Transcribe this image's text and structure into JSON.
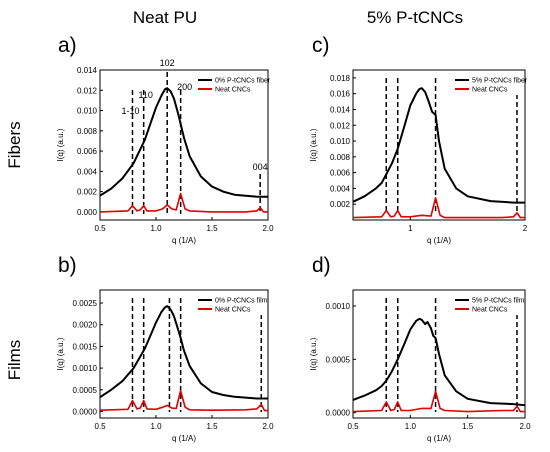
{
  "headers": {
    "left": "Neat PU",
    "right": "5% P-tCNCs"
  },
  "row_labels": {
    "top": "Fibers",
    "bottom": "Films"
  },
  "colors": {
    "series_main": "#000000",
    "series_cncs": "#e00000",
    "dashed": "#000000"
  },
  "chart_data": [
    {
      "id": "a",
      "type": "line",
      "panel_label": "a)",
      "xlabel": "q (1/A)",
      "ylabel": "I(q) (a.u.)",
      "xlim": [
        0.5,
        2.0
      ],
      "ylim": [
        -0.0008,
        0.014
      ],
      "xticks": [
        0.5,
        1.0,
        1.5,
        2.0
      ],
      "xtick_labels": [
        "0.5",
        "1.0",
        "1.5",
        "2.0"
      ],
      "yticks": [
        0.0,
        0.002,
        0.004,
        0.006,
        0.008,
        0.01,
        0.012,
        0.014
      ],
      "ytick_labels": [
        "0.000",
        "0.002",
        "0.004",
        "0.006",
        "0.008",
        "0.010",
        "0.012",
        "0.014"
      ],
      "legend_position": "top-right",
      "dashed_lines": [
        0.79,
        0.89,
        1.1,
        1.22,
        1.93
      ],
      "annotations": [
        {
          "text": "1-10",
          "x": 0.79
        },
        {
          "text": "110",
          "x": 0.89
        },
        {
          "text": "102",
          "x": 1.1
        },
        {
          "text": "200",
          "x": 1.22
        },
        {
          "text": "004",
          "x": 1.93
        }
      ],
      "series": [
        {
          "name": "0% P-tCNCs fiber",
          "color": "#000000",
          "x": [
            0.5,
            0.6,
            0.7,
            0.8,
            0.9,
            0.95,
            1.0,
            1.05,
            1.08,
            1.1,
            1.13,
            1.16,
            1.2,
            1.25,
            1.3,
            1.4,
            1.5,
            1.6,
            1.7,
            1.8,
            1.9,
            2.0
          ],
          "y": [
            0.0016,
            0.0023,
            0.0033,
            0.0048,
            0.0071,
            0.0087,
            0.0103,
            0.0115,
            0.0121,
            0.0122,
            0.0119,
            0.0112,
            0.0096,
            0.0073,
            0.0055,
            0.0035,
            0.0025,
            0.002,
            0.0017,
            0.0016,
            0.0015,
            0.0015
          ]
        },
        {
          "name": "Neat CNCs",
          "color": "#e00000",
          "x": [
            0.5,
            0.75,
            0.79,
            0.83,
            0.86,
            0.89,
            0.92,
            1.0,
            1.06,
            1.1,
            1.14,
            1.18,
            1.22,
            1.26,
            1.3,
            1.5,
            1.8,
            1.9,
            1.93,
            1.96,
            2.0
          ],
          "y": [
            0.0,
            0.0001,
            0.0006,
            0.0001,
            0.0002,
            0.0006,
            0.0001,
            0.0001,
            0.0003,
            0.0007,
            0.0003,
            0.0002,
            0.0018,
            0.0003,
            0.0001,
            0.0,
            0.0,
            0.0001,
            0.0004,
            0.0,
            0.0
          ]
        }
      ]
    },
    {
      "id": "c",
      "type": "line",
      "panel_label": "c)",
      "xlabel": "q (1/A)",
      "ylabel": "I(q) (a.u.)",
      "xlim": [
        0.5,
        2.0
      ],
      "ylim": [
        0.0,
        0.019
      ],
      "xticks": [
        1.0,
        2.0
      ],
      "xtick_labels": [
        "1",
        "2"
      ],
      "yticks": [
        0.002,
        0.004,
        0.006,
        0.008,
        0.01,
        0.012,
        0.014,
        0.016,
        0.018
      ],
      "ytick_labels": [
        "0.002",
        "0.004",
        "0.006",
        "0.008",
        "0.010",
        "0.012",
        "0.014",
        "0.016",
        "0.018"
      ],
      "legend_position": "top-right",
      "dashed_lines": [
        0.79,
        0.89,
        1.22,
        1.93
      ],
      "annotations": [],
      "series": [
        {
          "name": "5% P-tCNCs fiber",
          "color": "#000000",
          "x": [
            0.5,
            0.6,
            0.7,
            0.75,
            0.79,
            0.84,
            0.89,
            0.95,
            1.0,
            1.05,
            1.08,
            1.1,
            1.13,
            1.16,
            1.19,
            1.22,
            1.25,
            1.3,
            1.4,
            1.5,
            1.7,
            1.9,
            2.0
          ],
          "y": [
            0.0023,
            0.003,
            0.004,
            0.0047,
            0.0058,
            0.0072,
            0.009,
            0.012,
            0.0145,
            0.016,
            0.0166,
            0.0167,
            0.0162,
            0.015,
            0.0137,
            0.0133,
            0.01,
            0.0065,
            0.004,
            0.003,
            0.0024,
            0.0022,
            0.0022
          ]
        },
        {
          "name": "Neat CNCs",
          "color": "#e00000",
          "x": [
            0.5,
            0.75,
            0.79,
            0.83,
            0.86,
            0.89,
            0.92,
            1.0,
            1.1,
            1.18,
            1.22,
            1.26,
            1.3,
            1.5,
            1.8,
            1.9,
            1.93,
            1.96,
            2.0
          ],
          "y": [
            0.0003,
            0.0004,
            0.0012,
            0.0004,
            0.0005,
            0.0012,
            0.0004,
            0.0004,
            0.0006,
            0.0005,
            0.0028,
            0.0006,
            0.0003,
            0.0003,
            0.0003,
            0.0004,
            0.0009,
            0.0003,
            0.0003
          ]
        }
      ]
    },
    {
      "id": "b",
      "type": "line",
      "panel_label": "b)",
      "xlabel": "q (1/A)",
      "ylabel": "I(q) (a.u.)",
      "xlim": [
        0.5,
        2.0
      ],
      "ylim": [
        -0.00015,
        0.0028
      ],
      "xticks": [
        0.5,
        1.0,
        1.5,
        2.0
      ],
      "xtick_labels": [
        "0.5",
        "1.0",
        "1.5",
        "2.0"
      ],
      "yticks": [
        0.0,
        0.0005,
        0.001,
        0.0015,
        0.002,
        0.0025
      ],
      "ytick_labels": [
        "0.0000",
        "0.0005",
        "0.0010",
        "0.0015",
        "0.0020",
        "0.0025"
      ],
      "legend_position": "top-right",
      "dashed_lines": [
        0.79,
        0.89,
        1.12,
        1.22,
        1.94
      ],
      "annotations": [],
      "series": [
        {
          "name": "0% P-tCNCs film",
          "color": "#000000",
          "x": [
            0.5,
            0.6,
            0.7,
            0.8,
            0.9,
            0.95,
            1.0,
            1.05,
            1.08,
            1.1,
            1.13,
            1.16,
            1.19,
            1.22,
            1.25,
            1.3,
            1.4,
            1.5,
            1.6,
            1.7,
            1.8,
            1.9,
            2.0
          ],
          "y": [
            0.00033,
            0.0005,
            0.0007,
            0.001,
            0.00145,
            0.00175,
            0.00205,
            0.0023,
            0.0024,
            0.00243,
            0.00235,
            0.0022,
            0.00195,
            0.0017,
            0.0014,
            0.00105,
            0.00065,
            0.00045,
            0.00038,
            0.00034,
            0.00032,
            0.0003,
            0.0003
          ]
        },
        {
          "name": "Neat CNCs",
          "color": "#e00000",
          "x": [
            0.5,
            0.75,
            0.79,
            0.83,
            0.86,
            0.89,
            0.92,
            1.0,
            1.06,
            1.1,
            1.14,
            1.18,
            1.22,
            1.26,
            1.3,
            1.5,
            1.8,
            1.9,
            1.94,
            1.97,
            2.0
          ],
          "y": [
            3e-05,
            5e-05,
            0.00025,
            6e-05,
            8e-05,
            0.00025,
            6e-05,
            5e-05,
            0.0001,
            0.00014,
            8e-05,
            7e-05,
            0.00048,
            0.0001,
            4e-05,
            3e-05,
            4e-05,
            6e-05,
            0.00016,
            2e-05,
            2e-05
          ]
        }
      ]
    },
    {
      "id": "d",
      "type": "line",
      "panel_label": "d)",
      "xlabel": "q (1/A)",
      "ylabel": "I(q) (a.u.)",
      "xlim": [
        0.5,
        2.0
      ],
      "ylim": [
        -5e-05,
        0.00115
      ],
      "xticks": [
        0.5,
        1.0,
        1.5,
        2.0
      ],
      "xtick_labels": [
        "0.5",
        "1.0",
        "1.5",
        "2.0"
      ],
      "yticks": [
        0.0,
        0.0005,
        0.001
      ],
      "ytick_labels": [
        "0.0000",
        "0.0005",
        "0.0010"
      ],
      "legend_position": "top-right",
      "dashed_lines": [
        0.79,
        0.89,
        1.22,
        1.93
      ],
      "annotations": [],
      "series": [
        {
          "name": "5% P-tCNCs film",
          "color": "#000000",
          "x": [
            0.5,
            0.6,
            0.7,
            0.75,
            0.79,
            0.84,
            0.89,
            0.95,
            1.0,
            1.05,
            1.08,
            1.1,
            1.13,
            1.15,
            1.18,
            1.2,
            1.22,
            1.25,
            1.3,
            1.4,
            1.5,
            1.7,
            1.9,
            2.0
          ],
          "y": [
            0.00012,
            0.00016,
            0.00021,
            0.00025,
            0.0003,
            0.00039,
            0.0005,
            0.00065,
            0.00078,
            0.00086,
            0.00088,
            0.00087,
            0.00083,
            0.00085,
            0.00079,
            0.00072,
            0.0007,
            0.00055,
            0.00035,
            0.0002,
            0.00013,
            9e-05,
            8e-05,
            7e-05
          ]
        },
        {
          "name": "Neat CNCs",
          "color": "#e00000",
          "x": [
            0.5,
            0.75,
            0.79,
            0.83,
            0.86,
            0.89,
            0.92,
            1.0,
            1.1,
            1.18,
            1.22,
            1.26,
            1.3,
            1.5,
            1.8,
            1.9,
            1.93,
            1.96,
            2.0
          ],
          "y": [
            1e-05,
            2e-05,
            0.0001,
            2e-05,
            3e-05,
            0.0001,
            2e-05,
            2e-05,
            4e-05,
            4e-05,
            0.0002,
            4e-05,
            2e-05,
            1e-05,
            2e-05,
            2e-05,
            6e-05,
            1e-05,
            1e-05
          ]
        }
      ]
    }
  ]
}
